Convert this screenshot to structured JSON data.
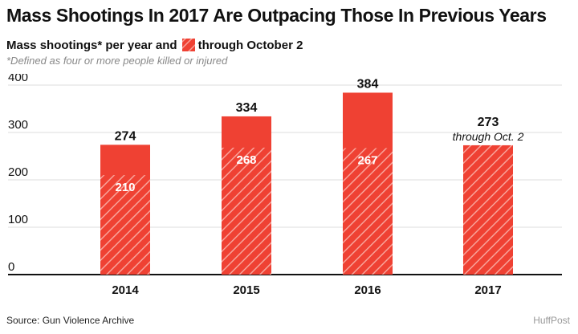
{
  "title": "Mass Shootings In 2017 Are Outpacing Those In Previous Years",
  "subtitle": {
    "prefix": "Mass shootings* per year and",
    "legend_label": "through October 2"
  },
  "note": "*Defined as four or more people killed or injured",
  "source": "Source: Gun Violence Archive",
  "brand": "HuffPost",
  "colors": {
    "bar": "#ef4133",
    "hatch": "#f8a39a",
    "axis": "#111111",
    "grid": "#dddddd"
  },
  "chart_data": {
    "type": "bar",
    "title": "Mass Shootings In 2017 Are Outpacing Those In Previous Years",
    "xlabel": "",
    "ylabel": "",
    "ylim": [
      0,
      400
    ],
    "yticks": [
      0,
      100,
      200,
      300,
      400
    ],
    "grid": true,
    "legend": "inline in subtitle",
    "categories": [
      "2014",
      "2015",
      "2016",
      "2017"
    ],
    "series": [
      {
        "name": "Mass shootings* per year",
        "values": [
          274,
          334,
          384,
          null
        ]
      },
      {
        "name": "through October 2",
        "values": [
          210,
          268,
          267,
          273
        ]
      }
    ],
    "total_labels": [
      "274",
      "334",
      "384",
      "273"
    ],
    "partial_labels": [
      "210",
      "268",
      "267",
      ""
    ],
    "annotations": [
      {
        "category": "2017",
        "text": "through Oct. 2"
      }
    ]
  }
}
